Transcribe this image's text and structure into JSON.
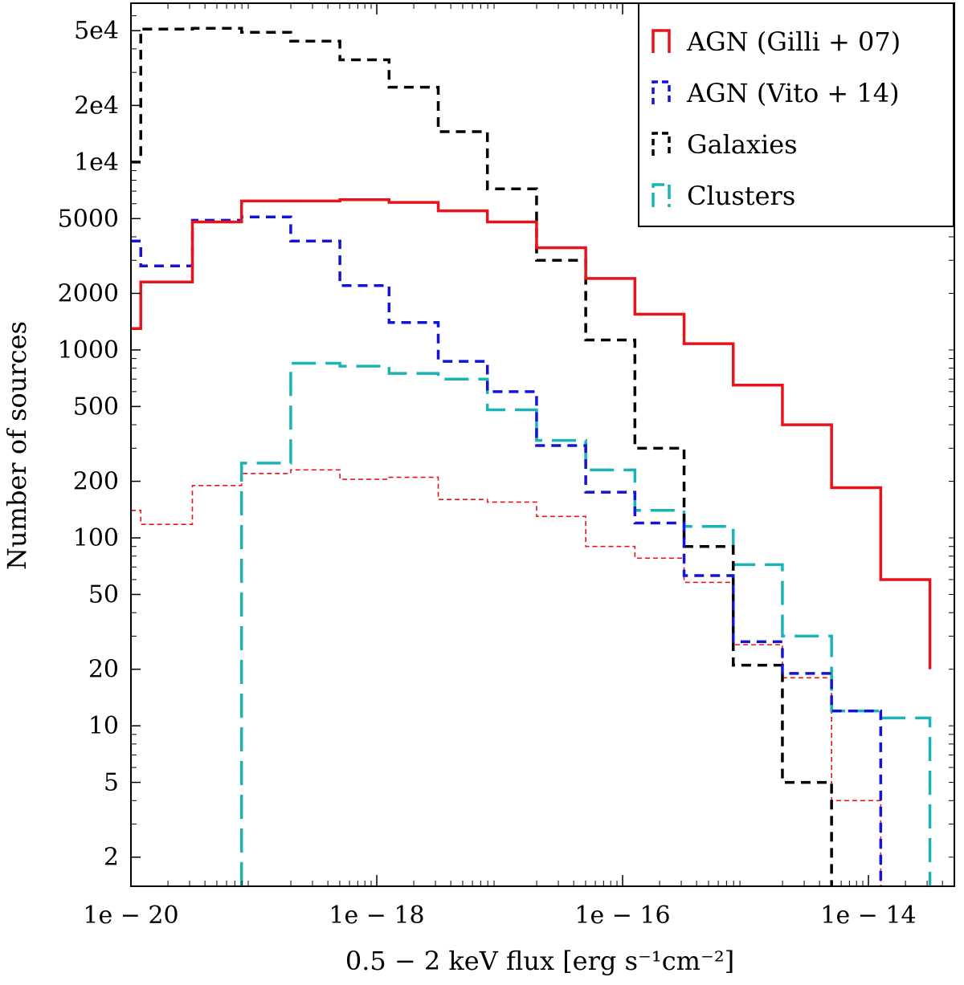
{
  "chart_data": {
    "type": "line",
    "style": "step histogram",
    "title": "",
    "xlabel": "0.5 − 2 keV flux [erg s⁻¹cm⁻²]",
    "ylabel": "Number of sources",
    "xscale": "log",
    "yscale": "log",
    "xlim": [
      1e-20,
      5e-14
    ],
    "ylim": [
      1.4,
      70000
    ],
    "x_ticks": [
      {
        "value": 1e-20,
        "label": "1e − 20"
      },
      {
        "value": 1e-18,
        "label": "1e − 18"
      },
      {
        "value": 1e-16,
        "label": "1e − 16"
      },
      {
        "value": 1e-14,
        "label": "1e − 14"
      }
    ],
    "y_ticks": [
      {
        "value": 2,
        "label": "2"
      },
      {
        "value": 5,
        "label": "5"
      },
      {
        "value": 10,
        "label": "10"
      },
      {
        "value": 20,
        "label": "20"
      },
      {
        "value": 50,
        "label": "50"
      },
      {
        "value": 100,
        "label": "100"
      },
      {
        "value": 200,
        "label": "200"
      },
      {
        "value": 500,
        "label": "500"
      },
      {
        "value": 1000,
        "label": "1000"
      },
      {
        "value": 2000,
        "label": "2000"
      },
      {
        "value": 5000,
        "label": "5000"
      },
      {
        "value": 10000,
        "label": "1e4"
      },
      {
        "value": 20000,
        "label": "2e4"
      },
      {
        "value": 50000,
        "label": "5e4"
      }
    ],
    "bin_edges_log10": [
      -20,
      -19.92,
      -19.5,
      -19.1,
      -18.7,
      -18.3,
      -17.9,
      -17.5,
      -17.1,
      -16.7,
      -16.3,
      -15.9,
      -15.5,
      -15.1,
      -14.7,
      -14.3,
      -13.9,
      -13.5
    ],
    "legend": {
      "position": "top-right"
    },
    "series": [
      {
        "name": "AGN (Gilli + 07)",
        "color": "#e8141c",
        "dash": "solid",
        "in_legend": true,
        "values": [
          1300,
          2300,
          4800,
          6200,
          6200,
          6300,
          6100,
          5500,
          4800,
          3500,
          2400,
          1550,
          1080,
          650,
          400,
          185,
          60,
          20
        ]
      },
      {
        "name": "AGN (Vito + 14)",
        "color": "#1414d4",
        "dash": "dashed",
        "in_legend": true,
        "values": [
          3800,
          2800,
          4900,
          5100,
          3800,
          2200,
          1400,
          870,
          600,
          310,
          175,
          120,
          63,
          28,
          19,
          12,
          null,
          null
        ]
      },
      {
        "name": "Galaxies",
        "color": "#000000",
        "dash": "dashed",
        "in_legend": true,
        "values": [
          10000,
          51000,
          51500,
          49000,
          44000,
          35000,
          25000,
          14500,
          7200,
          3000,
          1130,
          300,
          90,
          21,
          5,
          null,
          null,
          null
        ]
      },
      {
        "name": "Clusters",
        "color": "#1ab4b4",
        "dash": "long-dashed",
        "in_legend": true,
        "values": [
          null,
          null,
          null,
          250,
          850,
          820,
          750,
          700,
          480,
          330,
          230,
          140,
          115,
          72,
          30,
          12,
          11,
          null
        ]
      },
      {
        "name": "AGN thin (unlabeled)",
        "color": "#e8141c",
        "dash": "dotted-thin",
        "in_legend": false,
        "values": [
          140,
          118,
          190,
          220,
          230,
          205,
          210,
          160,
          155,
          130,
          90,
          78,
          58,
          27,
          18,
          4,
          null,
          null
        ]
      }
    ]
  }
}
